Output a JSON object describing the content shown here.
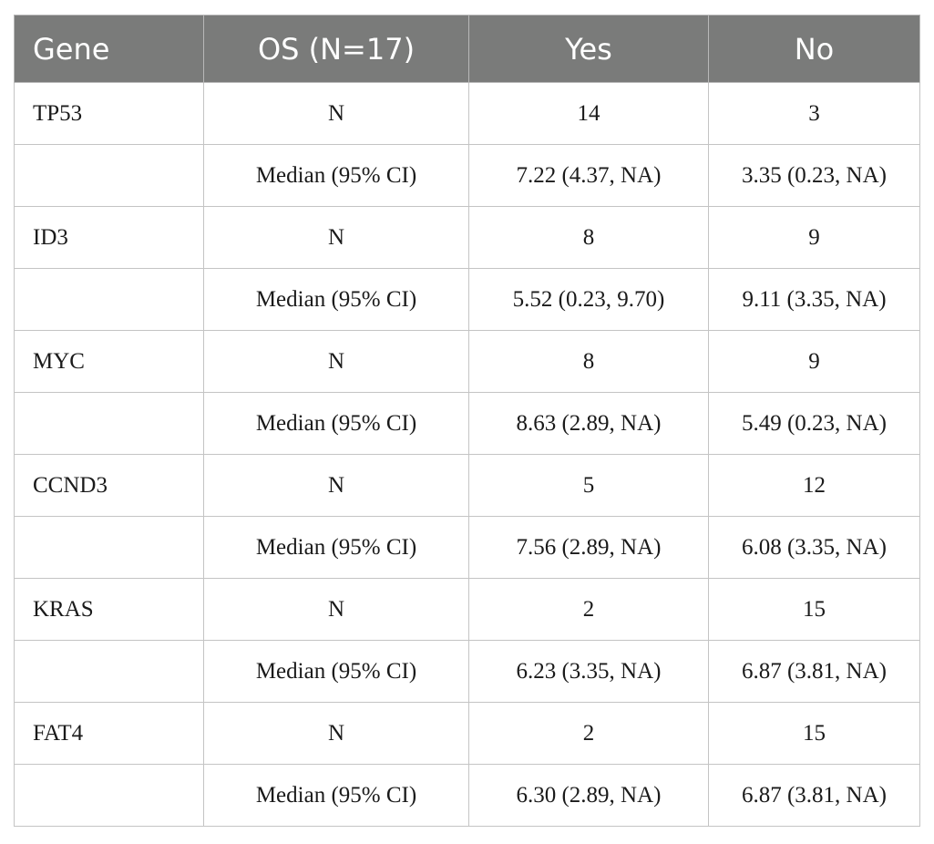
{
  "table": {
    "headers": [
      "Gene",
      "OS (N=17)",
      "Yes",
      "No"
    ],
    "rows": [
      {
        "gene": "TP53",
        "stat": "N",
        "yes": "14",
        "no": "3"
      },
      {
        "gene": "",
        "stat": "Median (95% CI)",
        "yes": "7.22 (4.37, NA)",
        "no": "3.35 (0.23, NA)"
      },
      {
        "gene": "ID3",
        "stat": "N",
        "yes": "8",
        "no": "9"
      },
      {
        "gene": "",
        "stat": "Median (95% CI)",
        "yes": "5.52 (0.23, 9.70)",
        "no": "9.11 (3.35, NA)"
      },
      {
        "gene": "MYC",
        "stat": "N",
        "yes": "8",
        "no": "9"
      },
      {
        "gene": "",
        "stat": "Median (95% CI)",
        "yes": "8.63 (2.89, NA)",
        "no": "5.49 (0.23, NA)"
      },
      {
        "gene": "CCND3",
        "stat": "N",
        "yes": "5",
        "no": "12"
      },
      {
        "gene": "",
        "stat": "Median (95% CI)",
        "yes": "7.56 (2.89, NA)",
        "no": "6.08 (3.35, NA)"
      },
      {
        "gene": "KRAS",
        "stat": "N",
        "yes": "2",
        "no": "15"
      },
      {
        "gene": "",
        "stat": "Median (95% CI)",
        "yes": "6.23 (3.35, NA)",
        "no": "6.87 (3.81, NA)"
      },
      {
        "gene": "FAT4",
        "stat": "N",
        "yes": "2",
        "no": "15"
      },
      {
        "gene": "",
        "stat": "Median (95% CI)",
        "yes": "6.30 (2.89, NA)",
        "no": "6.87 (3.81, NA)"
      }
    ]
  },
  "colors": {
    "header_background": "#7a7b7a",
    "header_text": "#ffffff",
    "grid_line": "#c4c4c4"
  }
}
